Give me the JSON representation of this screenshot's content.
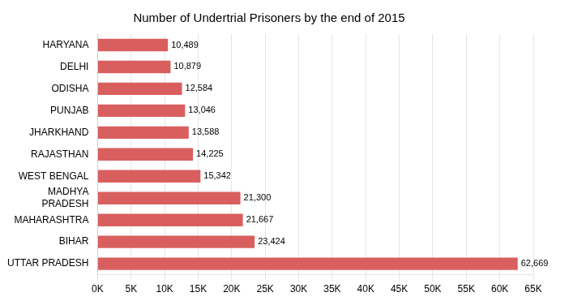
{
  "chart_data": {
    "type": "bar",
    "orientation": "horizontal",
    "title": "Number of Undertrial Prisoners by the end of 2015",
    "categories": [
      "UTTAR PRADESH",
      "BIHAR",
      "MAHARASHTRA",
      "MADHYA\nPRADESH",
      "WEST BENGAL",
      "RAJASTHAN",
      "JHARKHAND",
      "PUNJAB",
      "ODISHA",
      "DELHI",
      "HARYANA"
    ],
    "values": [
      62669,
      23424,
      21667,
      21300,
      15342,
      14225,
      13588,
      13046,
      12584,
      10879,
      10489
    ],
    "value_labels": [
      "62,669",
      "23,424",
      "21,667",
      "21,300",
      "15,342",
      "14,225",
      "13,588",
      "13,046",
      "12,584",
      "10,879",
      "10,489"
    ],
    "data_labels": true,
    "color": "#d95f5f",
    "xlim": [
      0,
      65000
    ],
    "xticks": [
      {
        "value": 0,
        "label": "0K"
      },
      {
        "value": 5000,
        "label": "5K"
      },
      {
        "value": 10000,
        "label": "10K"
      },
      {
        "value": 15000,
        "label": "15K"
      },
      {
        "value": 20000,
        "label": "20K"
      },
      {
        "value": 25000,
        "label": "25K"
      },
      {
        "value": 30000,
        "label": "30K"
      },
      {
        "value": 35000,
        "label": "35K"
      },
      {
        "value": 40000,
        "label": "40K"
      },
      {
        "value": 45000,
        "label": "45K"
      },
      {
        "value": 50000,
        "label": "50K"
      },
      {
        "value": 55000,
        "label": "55K"
      },
      {
        "value": 60000,
        "label": "60K"
      },
      {
        "value": 65000,
        "label": "65K"
      }
    ],
    "grid": true
  }
}
